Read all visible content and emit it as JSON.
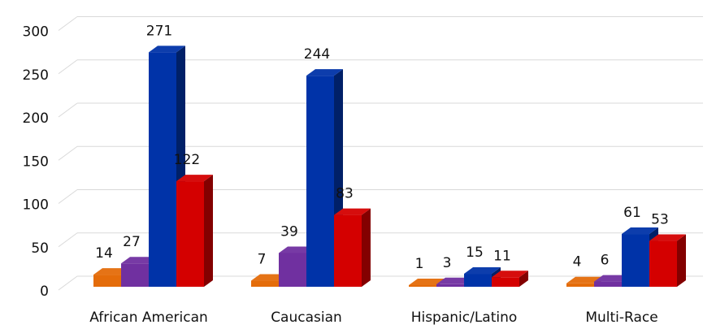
{
  "chart_data": {
    "type": "bar",
    "title": "",
    "xlabel": "",
    "ylabel": "",
    "categories": [
      "African American",
      "Caucasian",
      "Hispanic/Latino",
      "Multi-Race"
    ],
    "series": [
      {
        "values": [
          14,
          7,
          1,
          4
        ],
        "color": "#E46C0A"
      },
      {
        "values": [
          27,
          39,
          3,
          6
        ],
        "color": "#7030A0"
      },
      {
        "values": [
          271,
          244,
          15,
          61
        ],
        "color": "#0033A8"
      },
      {
        "values": [
          122,
          83,
          11,
          53
        ],
        "color": "#D40000"
      }
    ],
    "ylim": [
      0,
      300
    ],
    "yticks": [
      0,
      50,
      100,
      150,
      200,
      250,
      300
    ],
    "grid": true,
    "legend": "none",
    "style": "3d-clustered-column"
  }
}
